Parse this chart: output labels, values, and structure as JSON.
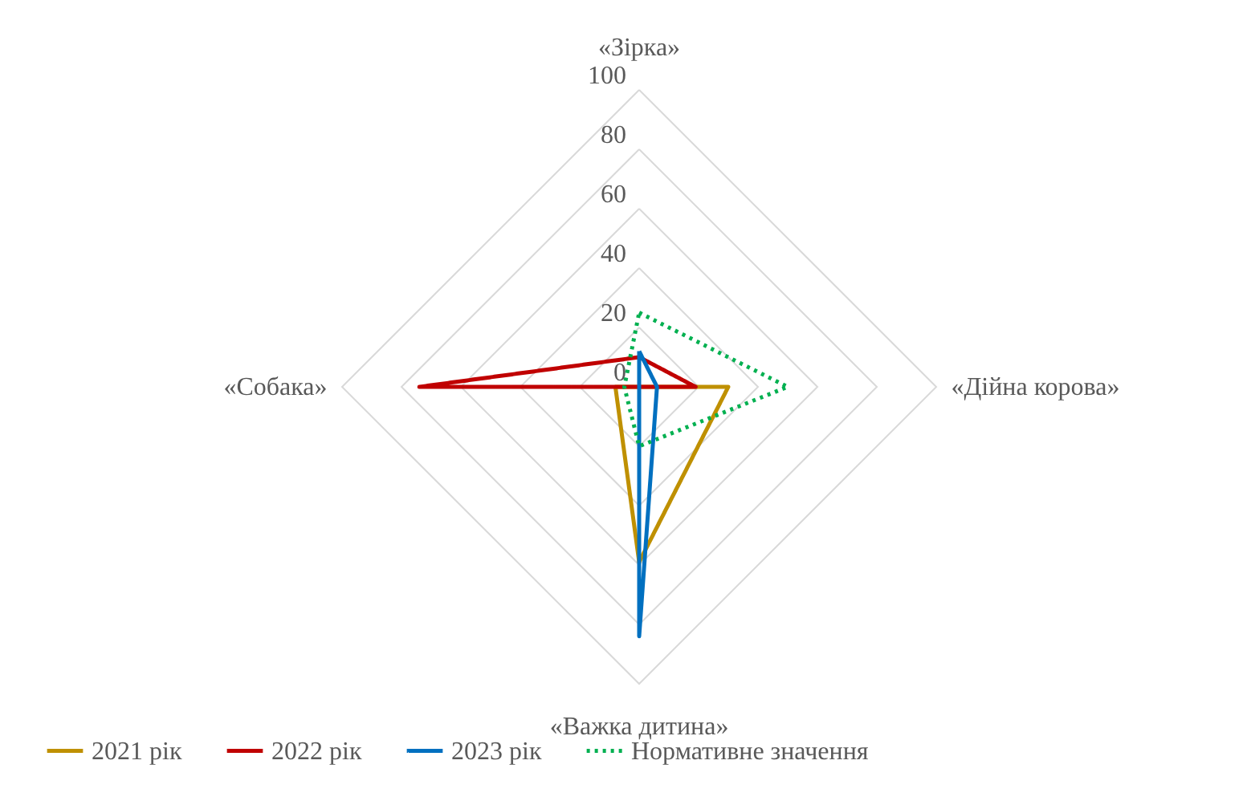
{
  "chart_data": {
    "type": "radar",
    "categories": [
      "«Зірка»",
      "«Дійна корова»",
      "«Важка дитина»",
      "«Собака»"
    ],
    "ylim": [
      0,
      100
    ],
    "yticks": [
      0,
      20,
      40,
      60,
      80,
      100
    ],
    "grid": true,
    "legend": "bottom",
    "series": [
      {
        "name": "2021 рік",
        "color": "#bf9000",
        "values": [
          0,
          30,
          59,
          8
        ]
      },
      {
        "name": "2022 рік",
        "color": "#c00000",
        "values": [
          10,
          19,
          0,
          74
        ]
      },
      {
        "name": "2023 рік",
        "color": "#0070c0",
        "values": [
          12,
          6,
          84,
          0
        ]
      },
      {
        "name": "Нормативне значення",
        "color": "#00b050",
        "line_style": "dotted",
        "values": [
          25,
          50,
          20,
          5
        ]
      }
    ]
  }
}
